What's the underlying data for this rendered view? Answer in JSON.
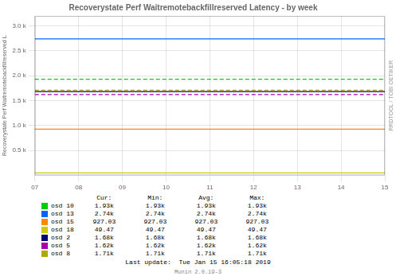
{
  "chart_data": {
    "type": "line",
    "title": "Recoverystate Perf Waitremotebackfillreserved Latency - by week",
    "y_label": "Recoverystate Perf Waitremotebackfillreserved L",
    "x": [
      7,
      15
    ],
    "xlim": [
      7,
      15
    ],
    "xticks": [
      {
        "value": 7,
        "label": "07"
      },
      {
        "value": 8,
        "label": "08"
      },
      {
        "value": 9,
        "label": "09"
      },
      10,
      11,
      12,
      13,
      14,
      15
    ],
    "ylim": [
      0,
      3200
    ],
    "yticks": [
      {
        "value": 500,
        "label": "0.5 k"
      },
      {
        "value": 1000,
        "label": "1.0 k"
      },
      {
        "value": 1500,
        "label": "1.5 k"
      },
      {
        "value": 2000,
        "label": "2.0 k"
      },
      {
        "value": 2500,
        "label": "2.5 k"
      },
      {
        "value": 3000,
        "label": "3.0 k"
      }
    ],
    "grid": true,
    "legend": "bottom",
    "stats_columns": [
      "Cur:",
      "Min:",
      "Avg:",
      "Max:"
    ],
    "series": [
      {
        "name": "osd 10",
        "color": "#00cc00",
        "values": [
          1930,
          1930
        ],
        "line_style": "dashed",
        "stats": [
          "1.93k",
          "1.93k",
          "1.93k",
          "1.93k"
        ]
      },
      {
        "name": "osd 13",
        "color": "#0066ff",
        "values": [
          2740,
          2740
        ],
        "line_style": "solid",
        "stats": [
          "2.74k",
          "2.74k",
          "2.74k",
          "2.74k"
        ]
      },
      {
        "name": "osd 15",
        "color": "#ff8800",
        "values": [
          927.03,
          927.03
        ],
        "line_style": "solid",
        "stats": [
          "927.03",
          "927.03",
          "927.03",
          "927.03"
        ]
      },
      {
        "name": "osd 18",
        "color": "#cccc00",
        "values": [
          49.47,
          49.47
        ],
        "line_style": "solid",
        "stats": [
          "49.47",
          "49.47",
          "49.47",
          "49.47"
        ]
      },
      {
        "name": "osd 2",
        "color": "#000077",
        "values": [
          1680,
          1680
        ],
        "line_style": "solid",
        "stats": [
          "1.68k",
          "1.68k",
          "1.68k",
          "1.68k"
        ]
      },
      {
        "name": "osd 5",
        "color": "#aa00aa",
        "values": [
          1620,
          1620
        ],
        "line_style": "dashed",
        "stats": [
          "1.62k",
          "1.62k",
          "1.62k",
          "1.62k"
        ]
      },
      {
        "name": "osd 8",
        "color": "#aaaa00",
        "values": [
          1710,
          1710
        ],
        "line_style": "dashed",
        "stats": [
          "1.71k",
          "1.71k",
          "1.71k",
          "1.71k"
        ]
      }
    ],
    "annotations": [
      "RRDTOOL / TOBI OETIKER",
      "Last update:  Tue Jan 15 16:05:18 2019",
      "Munin 2.0.19-3"
    ]
  }
}
